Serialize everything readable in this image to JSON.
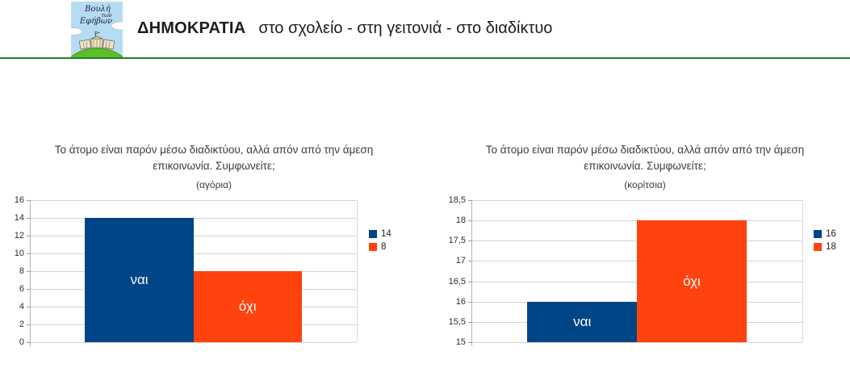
{
  "header": {
    "logo": {
      "line1": "Βουλή",
      "line2": "των",
      "line3": "Εφήβων"
    },
    "title_bold": "ΔΗΜΟΚΡΑΤΙΑ",
    "title_rest": "στο σχολείο - στη γειτονιά - στο διαδίκτυο",
    "accent_green": "#1e7d33"
  },
  "colors": {
    "bar_blue": "#004586",
    "bar_orange": "#ff420e",
    "gridline": "#d4d4d4",
    "axis": "#b3b3b3",
    "text": "#3c3c3c"
  },
  "chart_data": [
    {
      "type": "bar",
      "title": "Το άτομο είναι παρόν μέσω διαδικτύου, αλλά απόν από την άμεση επικοινωνία. Συμφωνείτε;",
      "subtitle": "(αγόρια)",
      "categories": [
        "ναι",
        "όχι"
      ],
      "values": [
        14,
        8
      ],
      "bar_colors": [
        "#004586",
        "#ff420e"
      ],
      "ylim": [
        0,
        16
      ],
      "ytick_step": 2,
      "ytick_labels": [
        "0",
        "2",
        "4",
        "6",
        "8",
        "10",
        "12",
        "14",
        "16"
      ],
      "legend": [
        {
          "label": "14",
          "color": "#004586"
        },
        {
          "label": "8",
          "color": "#ff420e"
        }
      ],
      "legend_position": "right",
      "grid": true
    },
    {
      "type": "bar",
      "title": "Το άτομο είναι παρόν μέσω διαδικτύου, αλλά απόν από την άμεση επικοινωνία. Συμφωνείτε;",
      "subtitle": "(κορίτσια)",
      "categories": [
        "ναι",
        "όχι"
      ],
      "values": [
        16,
        18
      ],
      "bar_colors": [
        "#004586",
        "#ff420e"
      ],
      "ylim": [
        15,
        18.5
      ],
      "ytick_step": 0.5,
      "ytick_labels": [
        "15",
        "15,5",
        "16",
        "16,5",
        "17",
        "17,5",
        "18",
        "18,5"
      ],
      "legend": [
        {
          "label": "16",
          "color": "#004586"
        },
        {
          "label": "18",
          "color": "#ff420e"
        }
      ],
      "legend_position": "right",
      "grid": true
    }
  ]
}
